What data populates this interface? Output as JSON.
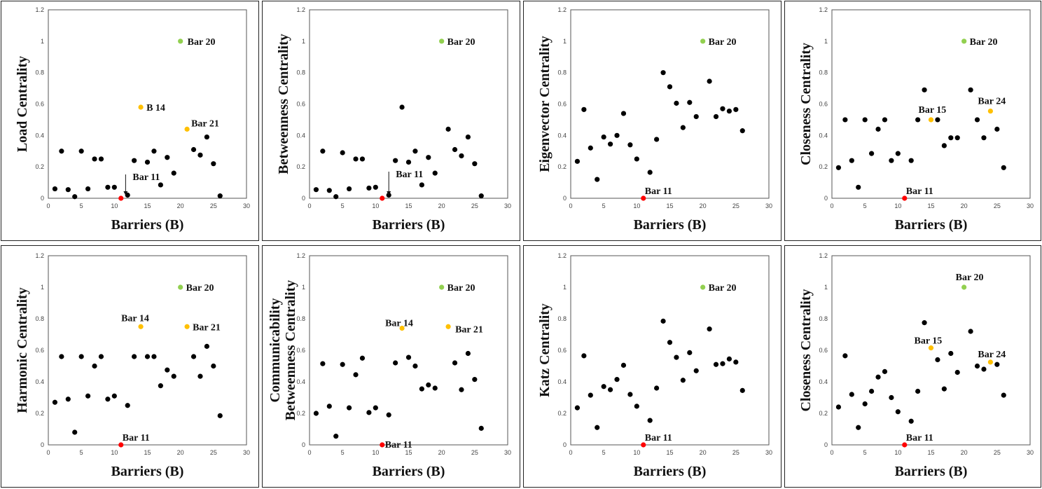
{
  "colors": {
    "normal": "#000000",
    "top": "#92D050",
    "second": "#FFC000",
    "lowest": "#FF0000"
  },
  "chart_data": [
    {
      "type": "scatter",
      "ylabel": [
        "Load Centrality"
      ],
      "xlabel": "Barriers (B)",
      "xlim": [
        0,
        30
      ],
      "ylim": [
        0,
        1.2
      ],
      "xticks": [
        0,
        5,
        10,
        15,
        20,
        25,
        30
      ],
      "yticks": [
        0,
        0.2,
        0.4,
        0.6,
        0.8,
        1,
        1.2
      ],
      "x": [
        1,
        2,
        3,
        4,
        5,
        6,
        7,
        8,
        9,
        10,
        11,
        12,
        13,
        14,
        15,
        16,
        17,
        18,
        19,
        20,
        21,
        22,
        23,
        24,
        25,
        26
      ],
      "y": [
        0.06,
        0.3,
        0.055,
        0.01,
        0.3,
        0.06,
        0.25,
        0.25,
        0.07,
        0.07,
        0.0,
        0.02,
        0.24,
        0.58,
        0.23,
        0.3,
        0.085,
        0.26,
        0.16,
        1.0,
        0.44,
        0.31,
        0.275,
        0.39,
        0.22,
        0.015
      ],
      "highlights": [
        {
          "x": 20,
          "color": "top"
        },
        {
          "x": 14,
          "color": "second"
        },
        {
          "x": 21,
          "color": "second"
        },
        {
          "x": 11,
          "color": "lowest"
        }
      ],
      "annotations": [
        {
          "text": "Bar 20",
          "x": 20,
          "y": 1.0,
          "dx": 10,
          "dy": 5
        },
        {
          "text": "B 14",
          "x": 14,
          "y": 0.58,
          "dx": 8,
          "dy": 5
        },
        {
          "text": "Bar 21",
          "x": 21,
          "y": 0.44,
          "dx": 6,
          "dy": -4
        },
        {
          "text": "Bar 11",
          "x": 11,
          "y": 0.0,
          "dx": 22,
          "dy": -26,
          "arrow": true
        }
      ]
    },
    {
      "type": "scatter",
      "ylabel": [
        "Betweenness Centrality"
      ],
      "xlabel": "Barriers (B)",
      "xlim": [
        0,
        30
      ],
      "ylim": [
        0,
        1.2
      ],
      "xticks": [
        0,
        5,
        10,
        15,
        20,
        25,
        30
      ],
      "yticks": [
        0,
        0.2,
        0.4,
        0.6,
        0.8,
        1,
        1.2
      ],
      "x": [
        1,
        2,
        3,
        4,
        5,
        6,
        7,
        8,
        9,
        10,
        11,
        12,
        13,
        14,
        15,
        16,
        17,
        18,
        19,
        20,
        21,
        22,
        23,
        24,
        25,
        26
      ],
      "y": [
        0.055,
        0.3,
        0.05,
        0.01,
        0.29,
        0.06,
        0.25,
        0.25,
        0.065,
        0.07,
        0.0,
        0.02,
        0.24,
        0.58,
        0.23,
        0.3,
        0.085,
        0.26,
        0.16,
        1.0,
        0.44,
        0.31,
        0.27,
        0.39,
        0.22,
        0.015
      ],
      "highlights": [
        {
          "x": 20,
          "color": "top"
        },
        {
          "x": 11,
          "color": "lowest"
        }
      ],
      "annotations": [
        {
          "text": "Bar 20",
          "x": 20,
          "y": 1.0,
          "dx": 8,
          "dy": 5
        },
        {
          "text": "Bar 11",
          "x": 11,
          "y": 0.0,
          "dx": 22,
          "dy": -30,
          "arrow": true,
          "arrowX": 12
        }
      ]
    },
    {
      "type": "scatter",
      "ylabel": [
        "Eigenvector Centrality"
      ],
      "xlabel": "Barriers (B)",
      "xlim": [
        0,
        30
      ],
      "ylim": [
        0,
        1.2
      ],
      "xticks": [
        0,
        5,
        10,
        15,
        20,
        25,
        30
      ],
      "yticks": [
        0,
        0.2,
        0.4,
        0.6,
        0.8,
        1,
        1.2
      ],
      "x": [
        1,
        2,
        3,
        4,
        5,
        6,
        7,
        8,
        9,
        10,
        11,
        12,
        13,
        14,
        15,
        16,
        17,
        18,
        19,
        20,
        21,
        22,
        23,
        24,
        25,
        26
      ],
      "y": [
        0.235,
        0.565,
        0.32,
        0.12,
        0.39,
        0.345,
        0.4,
        0.54,
        0.34,
        0.25,
        0.0,
        0.165,
        0.375,
        0.8,
        0.71,
        0.605,
        0.45,
        0.61,
        0.52,
        1.0,
        0.745,
        0.52,
        0.57,
        0.555,
        0.565,
        0.43
      ],
      "highlights": [
        {
          "x": 20,
          "color": "top"
        },
        {
          "x": 11,
          "color": "lowest"
        }
      ],
      "annotations": [
        {
          "text": "Bar 20",
          "x": 20,
          "y": 1.0,
          "dx": 8,
          "dy": 5
        },
        {
          "text": "Bar 11",
          "x": 11,
          "y": 0.0,
          "dx": 2,
          "dy": -6
        }
      ]
    },
    {
      "type": "scatter",
      "ylabel": [
        "Closeness Centrality"
      ],
      "xlabel": "Barriers (B)",
      "xlim": [
        0,
        30
      ],
      "ylim": [
        0,
        1.2
      ],
      "xticks": [
        0,
        5,
        10,
        15,
        20,
        25,
        30
      ],
      "yticks": [
        0,
        0.2,
        0.4,
        0.6,
        0.8,
        1,
        1.2
      ],
      "x": [
        1,
        2,
        3,
        4,
        5,
        6,
        7,
        8,
        9,
        10,
        11,
        12,
        13,
        14,
        15,
        16,
        17,
        18,
        19,
        20,
        21,
        22,
        23,
        24,
        25,
        26
      ],
      "y": [
        0.195,
        0.5,
        0.24,
        0.07,
        0.5,
        0.285,
        0.44,
        0.5,
        0.24,
        0.285,
        0.0,
        0.24,
        0.5,
        0.69,
        0.5,
        0.5,
        0.335,
        0.385,
        0.385,
        1.0,
        0.69,
        0.5,
        0.385,
        0.555,
        0.44,
        0.195
      ],
      "highlights": [
        {
          "x": 20,
          "color": "top"
        },
        {
          "x": 15,
          "color": "second"
        },
        {
          "x": 24,
          "color": "second"
        },
        {
          "x": 11,
          "color": "lowest"
        }
      ],
      "annotations": [
        {
          "text": "Bar 20",
          "x": 20,
          "y": 1.0,
          "dx": 8,
          "dy": 5
        },
        {
          "text": "Bar 15",
          "x": 15,
          "y": 0.5,
          "dx": -18,
          "dy": -10
        },
        {
          "text": "Bar 24",
          "x": 24,
          "y": 0.555,
          "dx": -18,
          "dy": -10
        },
        {
          "text": "Bar 11",
          "x": 11,
          "y": 0.0,
          "dx": 2,
          "dy": -6
        }
      ]
    },
    {
      "type": "scatter",
      "ylabel": [
        "Harmonic Centrality"
      ],
      "xlabel": "Barriers (B)",
      "xlim": [
        0,
        30
      ],
      "ylim": [
        0,
        1.2
      ],
      "xticks": [
        0,
        5,
        10,
        15,
        20,
        25,
        30
      ],
      "yticks": [
        0,
        0.2,
        0.4,
        0.6,
        0.8,
        1,
        1.2
      ],
      "x": [
        1,
        2,
        3,
        4,
        5,
        6,
        7,
        8,
        9,
        10,
        11,
        12,
        13,
        14,
        15,
        16,
        17,
        18,
        19,
        20,
        21,
        22,
        23,
        24,
        25,
        26
      ],
      "y": [
        0.27,
        0.56,
        0.29,
        0.08,
        0.56,
        0.31,
        0.5,
        0.56,
        0.29,
        0.31,
        0.0,
        0.25,
        0.56,
        0.75,
        0.56,
        0.56,
        0.375,
        0.475,
        0.435,
        1.0,
        0.75,
        0.56,
        0.435,
        0.625,
        0.5,
        0.185
      ],
      "highlights": [
        {
          "x": 20,
          "color": "top"
        },
        {
          "x": 14,
          "color": "second"
        },
        {
          "x": 21,
          "color": "second"
        },
        {
          "x": 11,
          "color": "lowest"
        }
      ],
      "annotations": [
        {
          "text": "Bar 20",
          "x": 20,
          "y": 1.0,
          "dx": 8,
          "dy": 5
        },
        {
          "text": "Bar 14",
          "x": 14,
          "y": 0.75,
          "dx": -28,
          "dy": -8
        },
        {
          "text": "Bar 21",
          "x": 21,
          "y": 0.75,
          "dx": 8,
          "dy": 5
        },
        {
          "text": "Bar 11",
          "x": 11,
          "y": 0.0,
          "dx": 2,
          "dy": -6
        }
      ]
    },
    {
      "type": "scatter",
      "ylabel": [
        "Communicability",
        "Betweenness Centrality"
      ],
      "xlabel": "Barriers (B)",
      "xlim": [
        0,
        30
      ],
      "ylim": [
        0,
        1.2
      ],
      "xticks": [
        0,
        5,
        10,
        15,
        20,
        25,
        30
      ],
      "yticks": [
        0,
        0.2,
        0.4,
        0.6,
        0.8,
        1,
        1.2
      ],
      "x": [
        1,
        2,
        3,
        4,
        5,
        6,
        7,
        8,
        9,
        10,
        11,
        12,
        13,
        14,
        15,
        16,
        17,
        18,
        19,
        20,
        21,
        22,
        23,
        24,
        25,
        26
      ],
      "y": [
        0.2,
        0.515,
        0.245,
        0.055,
        0.51,
        0.235,
        0.445,
        0.55,
        0.205,
        0.235,
        0.0,
        0.19,
        0.52,
        0.74,
        0.555,
        0.5,
        0.355,
        0.38,
        0.36,
        1.0,
        0.75,
        0.52,
        0.35,
        0.58,
        0.415,
        0.105
      ],
      "highlights": [
        {
          "x": 20,
          "color": "top"
        },
        {
          "x": 14,
          "color": "second"
        },
        {
          "x": 21,
          "color": "second"
        },
        {
          "x": 11,
          "color": "lowest"
        }
      ],
      "annotations": [
        {
          "text": "Bar 20",
          "x": 20,
          "y": 1.0,
          "dx": 8,
          "dy": 5
        },
        {
          "text": "Bar 14",
          "x": 14,
          "y": 0.74,
          "dx": -24,
          "dy": -3
        },
        {
          "text": "Bar 21",
          "x": 21,
          "y": 0.75,
          "dx": 10,
          "dy": 8
        },
        {
          "text": "Bar 11",
          "x": 11,
          "y": 0.0,
          "dx": 4,
          "dy": 4
        }
      ]
    },
    {
      "type": "scatter",
      "ylabel": [
        "Katz Centrality"
      ],
      "xlabel": "Barriers (B)",
      "xlim": [
        0,
        30
      ],
      "ylim": [
        0,
        1.2
      ],
      "xticks": [
        0,
        5,
        10,
        15,
        20,
        25,
        30
      ],
      "yticks": [
        0,
        0.2,
        0.4,
        0.6,
        0.8,
        1,
        1.2
      ],
      "x": [
        1,
        2,
        3,
        4,
        5,
        6,
        7,
        8,
        9,
        10,
        11,
        12,
        13,
        14,
        15,
        16,
        17,
        18,
        19,
        20,
        21,
        22,
        23,
        24,
        25,
        26
      ],
      "y": [
        0.235,
        0.565,
        0.315,
        0.11,
        0.37,
        0.35,
        0.415,
        0.505,
        0.32,
        0.245,
        0.0,
        0.155,
        0.36,
        0.785,
        0.65,
        0.555,
        0.41,
        0.585,
        0.47,
        1.0,
        0.735,
        0.51,
        0.515,
        0.545,
        0.525,
        0.345
      ],
      "highlights": [
        {
          "x": 20,
          "color": "top"
        },
        {
          "x": 11,
          "color": "lowest"
        }
      ],
      "annotations": [
        {
          "text": "Bar 20",
          "x": 20,
          "y": 1.0,
          "dx": 8,
          "dy": 5
        },
        {
          "text": "Bar 11",
          "x": 11,
          "y": 0.0,
          "dx": 2,
          "dy": -6
        }
      ]
    },
    {
      "type": "scatter",
      "ylabel": [
        "Closeness Centrality"
      ],
      "xlabel": "Barriers (B)",
      "xlim": [
        0,
        30
      ],
      "ylim": [
        0,
        1.2
      ],
      "xticks": [
        0,
        5,
        10,
        15,
        20,
        25,
        30
      ],
      "yticks": [
        0,
        0.2,
        0.4,
        0.6,
        0.8,
        1,
        1.2
      ],
      "x": [
        1,
        2,
        3,
        4,
        5,
        6,
        7,
        8,
        9,
        10,
        11,
        12,
        13,
        14,
        15,
        16,
        17,
        18,
        19,
        20,
        21,
        22,
        23,
        24,
        25,
        26
      ],
      "y": [
        0.24,
        0.565,
        0.32,
        0.11,
        0.26,
        0.34,
        0.43,
        0.465,
        0.3,
        0.21,
        0.0,
        0.15,
        0.34,
        0.775,
        0.615,
        0.54,
        0.355,
        0.58,
        0.46,
        1.0,
        0.72,
        0.5,
        0.48,
        0.525,
        0.51,
        0.315
      ],
      "highlights": [
        {
          "x": 20,
          "color": "top"
        },
        {
          "x": 15,
          "color": "second"
        },
        {
          "x": 24,
          "color": "second"
        },
        {
          "x": 11,
          "color": "lowest"
        }
      ],
      "annotations": [
        {
          "text": "Bar 20",
          "x": 20,
          "y": 1.0,
          "dx": -12,
          "dy": -10
        },
        {
          "text": "Bar 15",
          "x": 15,
          "y": 0.615,
          "dx": -24,
          "dy": -6
        },
        {
          "text": "Bar 24",
          "x": 24,
          "y": 0.525,
          "dx": -18,
          "dy": -7
        },
        {
          "text": "Bar 11",
          "x": 11,
          "y": 0.0,
          "dx": 2,
          "dy": -6
        }
      ]
    }
  ]
}
